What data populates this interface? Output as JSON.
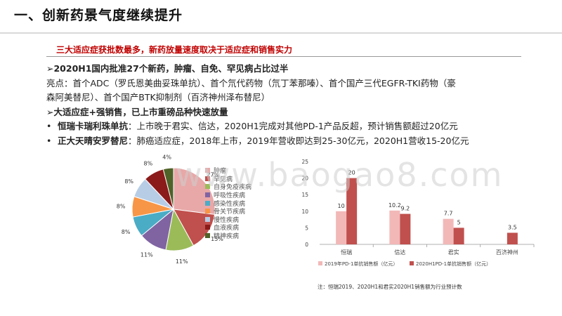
{
  "header": {
    "title": "一、创新药景气度继续提升"
  },
  "subtitle": "三大适应症获批数最多，新药放量速度取决于适应症和销售实力",
  "content": {
    "line1_prefix": "➢",
    "line1": "2020H1国内批准27个新药，肿瘤、自免、罕见病占比过半",
    "line2": "亮点：首个ADC（罗氏恩美曲妥珠单抗）、首个氘代药物（氘丁苯那嗪）、首个国产三代EGFR-TKI药物（豪",
    "line3": "森阿美替尼）、首个国产BTK抑制剂（百济神州泽布替尼）",
    "line4_prefix": "➢",
    "line4": "大适应症+强销售，已上市重磅品种快速放量",
    "bullet1_title": "恒瑞卡瑞利珠单抗",
    "bullet1_text": "：上市晚于君实、信达，2020H1完成对其他PD-1产品反超，预计销售额超过20亿元",
    "bullet2_title": "正大天晴安罗替尼",
    "bullet2_text": "：肺癌适应症，2018年上市，2019年营收即达到25-30亿元，2020H1营收15-20亿元",
    "bullet_symbol": "•"
  },
  "watermark": "www.baogao8.com",
  "chart_data": [
    {
      "type": "pie",
      "labels": [
        "肿瘤",
        "罕见病",
        "自身免疫疾病",
        "呼吸性疾病",
        "感染性疾病",
        "骨关节疾病",
        "慢性疾病",
        "血液疾病",
        "精神疾病"
      ],
      "values": [
        27,
        15,
        11,
        11,
        8,
        8,
        8,
        8,
        4
      ],
      "data_labels": [
        "27%",
        "15%",
        "11%",
        "11%",
        "8%",
        "8%",
        "8%",
        "8%",
        "4%"
      ],
      "colors": [
        "#e8a8a8",
        "#c0504d",
        "#9bbb59",
        "#8064a2",
        "#4bacc6",
        "#f79646",
        "#b7cde6",
        "#8b1a1a",
        "#4f6228"
      ],
      "legend_position": "right"
    },
    {
      "type": "bar",
      "categories": [
        "恒瑞",
        "信达",
        "君实",
        "百济神州"
      ],
      "series": [
        {
          "name": "2019年PD-1单抗销售额（亿元）",
          "values": [
            10,
            10.2,
            7.7,
            null
          ],
          "labels": [
            "10",
            "10.2",
            "7.7",
            ""
          ],
          "color": "#f2b8b8"
        },
        {
          "name": "2020H1PD-1单抗销售额（亿元）",
          "values": [
            20,
            9.2,
            5,
            3.5
          ],
          "labels": [
            "20",
            "9.2",
            "5",
            "3.5"
          ],
          "color": "#c0504d"
        }
      ],
      "ylim": [
        0,
        25
      ],
      "yticks": [
        "0",
        "5",
        "10",
        "15",
        "20",
        "25"
      ],
      "grid": false,
      "legend_position": "bottom",
      "note": "注：恒瑞2019、2020H1和君实2020H1销售额为行业预计数"
    }
  ]
}
